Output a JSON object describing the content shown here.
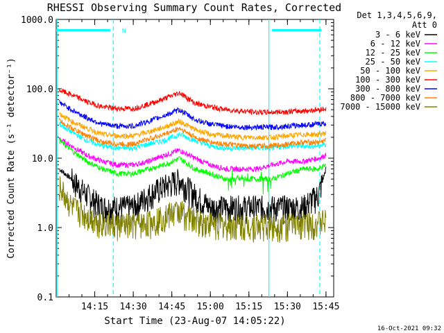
{
  "chart_data": {
    "type": "line",
    "title": "RHESSI Observing Summary Count Rates, Corrected",
    "xlabel": "Start Time (23-Aug-07 14:05:22)",
    "ylabel": "Corrected Count Rate (s⁻¹ detector⁻¹)",
    "yscale": "log",
    "ylim": [
      0.1,
      1000
    ],
    "xlim_minutes": [
      14.0,
      15.8
    ],
    "y_ticks": [
      "1000.0",
      "100.0",
      "10.0",
      "1.0",
      "0.1"
    ],
    "x_ticks": [
      {
        "label": "14:15",
        "t": 14.25
      },
      {
        "label": "14:30",
        "t": 14.5
      },
      {
        "label": "14:45",
        "t": 14.75
      },
      {
        "label": "15:00",
        "t": 15.0
      },
      {
        "label": "15:15",
        "t": 15.25
      },
      {
        "label": "15:30",
        "t": 15.5
      },
      {
        "label": "15:45",
        "t": 15.75
      }
    ],
    "detectors": "Det 1,3,4,5,6,9,",
    "attenuator": "Att 0",
    "legend_position": "right",
    "series": [
      {
        "name": "3 - 6 keV",
        "color": "#000000",
        "x": [
          14.02,
          14.1,
          14.2,
          14.3,
          14.4,
          14.5,
          14.6,
          14.7,
          14.8,
          14.9,
          15.0,
          15.1,
          15.2,
          15.3,
          15.4,
          15.5,
          15.6,
          15.7,
          15.75
        ],
        "y": [
          7,
          5,
          3,
          2,
          2,
          2,
          3,
          4,
          5,
          3,
          2,
          2,
          2,
          2,
          2,
          2,
          2,
          3,
          7
        ]
      },
      {
        "name": "6 - 12 keV",
        "color": "#ff00ff",
        "x": [
          14.02,
          14.1,
          14.2,
          14.3,
          14.4,
          14.5,
          14.6,
          14.7,
          14.8,
          14.9,
          15.0,
          15.1,
          15.2,
          15.3,
          15.4,
          15.5,
          15.6,
          15.7,
          15.75
        ],
        "y": [
          19,
          15,
          11,
          9,
          8,
          8,
          9,
          11,
          13,
          10,
          8,
          7,
          7,
          7,
          8,
          9,
          9,
          10,
          11
        ]
      },
      {
        "name": "12 - 25 keV",
        "color": "#00ff00",
        "x": [
          14.02,
          14.1,
          14.2,
          14.3,
          14.4,
          14.5,
          14.6,
          14.7,
          14.8,
          14.9,
          15.0,
          15.1,
          15.2,
          15.3,
          15.4,
          15.5,
          15.6,
          15.7,
          15.75
        ],
        "y": [
          18,
          13,
          9,
          7,
          6,
          6,
          7,
          8,
          10,
          7,
          6,
          5,
          5,
          5,
          5,
          6,
          7,
          7,
          8
        ]
      },
      {
        "name": "25 - 50 keV",
        "color": "#00ffff",
        "x": [
          14.02,
          14.1,
          14.2,
          14.3,
          14.4,
          14.5,
          14.6,
          14.7,
          14.8,
          14.9,
          15.0,
          15.1,
          15.2,
          15.3,
          15.4,
          15.5,
          15.6,
          15.7,
          15.75
        ],
        "y": [
          31,
          24,
          18,
          15,
          14,
          14,
          16,
          18,
          22,
          18,
          15,
          14,
          14,
          14,
          14,
          15,
          15,
          15,
          16
        ]
      },
      {
        "name": "50 - 100 keV",
        "color": "#ffa500",
        "x": [
          14.02,
          14.1,
          14.2,
          14.3,
          14.4,
          14.5,
          14.6,
          14.7,
          14.8,
          14.9,
          15.0,
          15.1,
          15.2,
          15.3,
          15.4,
          15.5,
          15.6,
          15.7,
          15.75
        ],
        "y": [
          44,
          34,
          27,
          22,
          21,
          21,
          24,
          28,
          34,
          26,
          22,
          21,
          20,
          20,
          20,
          21,
          22,
          22,
          23
        ]
      },
      {
        "name": "100 - 300 keV",
        "color": "#ff0000",
        "x": [
          14.02,
          14.1,
          14.2,
          14.3,
          14.4,
          14.5,
          14.6,
          14.7,
          14.8,
          14.9,
          15.0,
          15.1,
          15.2,
          15.3,
          15.4,
          15.5,
          15.6,
          15.7,
          15.75
        ],
        "y": [
          96,
          82,
          65,
          55,
          52,
          52,
          60,
          72,
          88,
          62,
          55,
          50,
          48,
          46,
          46,
          47,
          48,
          50,
          52
        ]
      },
      {
        "name": "300 - 800 keV",
        "color": "#0000ff",
        "x": [
          14.02,
          14.1,
          14.2,
          14.3,
          14.4,
          14.5,
          14.6,
          14.7,
          14.8,
          14.9,
          15.0,
          15.1,
          15.2,
          15.3,
          15.4,
          15.5,
          15.6,
          15.7,
          15.75
        ],
        "y": [
          64,
          50,
          38,
          31,
          29,
          29,
          34,
          41,
          50,
          36,
          31,
          29,
          28,
          28,
          28,
          29,
          30,
          31,
          32
        ]
      },
      {
        "name": "800 - 7000 keV",
        "color": "#ff7f00",
        "x": [
          14.02,
          14.1,
          14.2,
          14.3,
          14.4,
          14.5,
          14.6,
          14.7,
          14.8,
          14.9,
          15.0,
          15.1,
          15.2,
          15.3,
          15.4,
          15.5,
          15.6,
          15.7,
          15.75
        ],
        "y": [
          35,
          27,
          21,
          17,
          16,
          16,
          19,
          22,
          27,
          20,
          17,
          16,
          15,
          15,
          15,
          16,
          17,
          17,
          18
        ]
      },
      {
        "name": "7000 - 15000 keV",
        "color": "#808000",
        "x": [
          14.02,
          14.1,
          14.2,
          14.3,
          14.4,
          14.5,
          14.6,
          14.7,
          14.8,
          14.9,
          15.0,
          15.1,
          15.2,
          15.3,
          15.4,
          15.5,
          15.6,
          15.7,
          15.75
        ],
        "y": [
          4,
          2,
          1.5,
          1.2,
          1.1,
          1.1,
          1.2,
          1.5,
          1.8,
          1.3,
          1.2,
          1.1,
          1.1,
          1.1,
          1.1,
          1.1,
          1.2,
          1.2,
          1.3
        ]
      }
    ],
    "annotations": [
      {
        "text": "N",
        "t": 14.4,
        "y": 700
      }
    ],
    "night_markers_minutes": [
      14.37,
      15.38,
      15.71
    ],
    "night_bars": [
      [
        14.0,
        14.35
      ],
      [
        15.4,
        15.72
      ]
    ]
  },
  "footer": {
    "timestamp": "16-Oct-2021 09:32"
  }
}
